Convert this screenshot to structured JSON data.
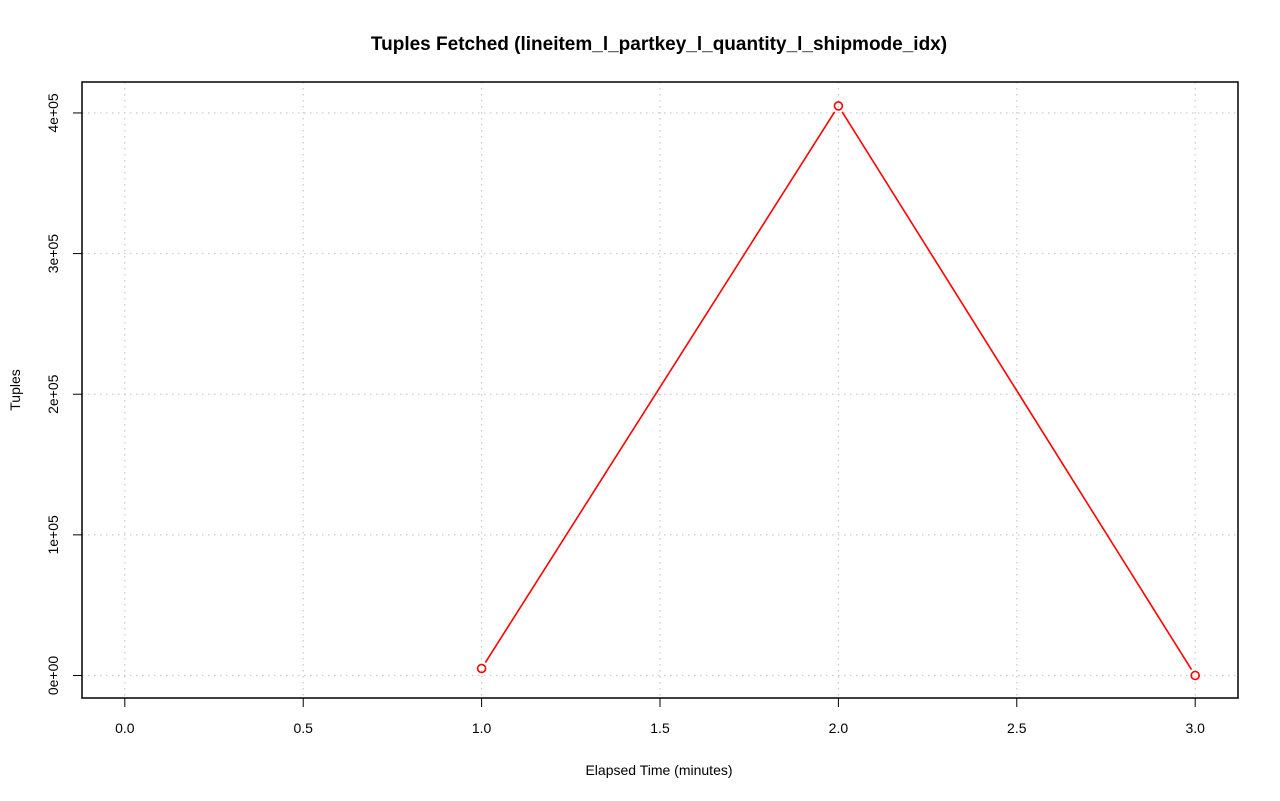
{
  "chart_data": {
    "type": "line",
    "title": "Tuples Fetched (lineitem_l_partkey_l_quantity_l_shipmode_idx)",
    "xlabel": "Elapsed Time (minutes)",
    "ylabel": "Tuples",
    "xlim": [
      -0.12,
      3.12
    ],
    "ylim": [
      -16000,
      422000
    ],
    "x_ticks": [
      0.0,
      0.5,
      1.0,
      1.5,
      2.0,
      2.5,
      3.0
    ],
    "x_tick_labels": [
      "0.0",
      "0.5",
      "1.0",
      "1.5",
      "2.0",
      "2.5",
      "3.0"
    ],
    "y_ticks": [
      0,
      100000,
      200000,
      300000,
      400000
    ],
    "y_tick_labels": [
      "0e+00",
      "1e+05",
      "2e+05",
      "3e+05",
      "4e+05"
    ],
    "grid": true,
    "series": [
      {
        "color": "#ff0000",
        "marker": "open-circle",
        "x": [
          1.0,
          2.0,
          3.0
        ],
        "y": [
          5000,
          405000,
          0
        ]
      }
    ]
  }
}
